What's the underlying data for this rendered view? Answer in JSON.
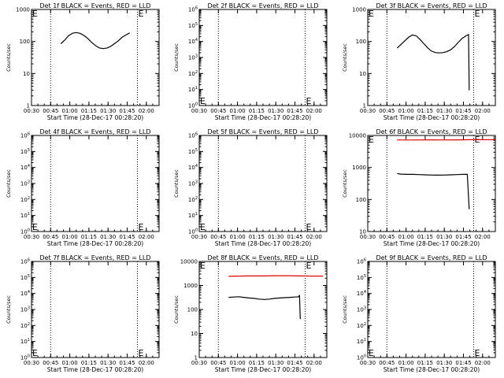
{
  "figure": {
    "x_tick_labels": [
      "00:30",
      "00:45",
      "01:00",
      "01:15",
      "01:30",
      "01:45",
      "02:00"
    ],
    "x_axis_title": "Start Time (28-Dec-17 00:28:20)",
    "y_axis_title": "Counts/sec",
    "e_marker": "E",
    "line_colors": {
      "events": "#000000",
      "lld": "#e00000"
    }
  },
  "chart_data": [
    {
      "type": "line",
      "title": "Det 1f BLACK = Events, RED = LLD",
      "xlabel": "Start Time (28-Dec-17 00:28:20)",
      "ylabel": "Counts/sec",
      "x_range_minutes": [
        30,
        130
      ],
      "ylim": [
        1,
        1000
      ],
      "y_scale": "log",
      "y_tick_labels": [
        "1",
        "10",
        "100",
        "1000"
      ],
      "dotted_lines_at_minutes": [
        45,
        113
      ],
      "e_markers": [
        {
          "x": 30,
          "y": 1000
        },
        {
          "x": 113,
          "y": 1000
        }
      ],
      "series": [
        {
          "color": "events",
          "points": [
            [
              53,
              85
            ],
            [
              56,
              110
            ],
            [
              59,
              150
            ],
            [
              62,
              180
            ],
            [
              65,
              190
            ],
            [
              68,
              180
            ],
            [
              71,
              155
            ],
            [
              74,
              125
            ],
            [
              77,
              95
            ],
            [
              80,
              75
            ],
            [
              83,
              63
            ],
            [
              86,
              60
            ],
            [
              89,
              62
            ],
            [
              92,
              70
            ],
            [
              95,
              85
            ],
            [
              98,
              105
            ],
            [
              101,
              135
            ],
            [
              104,
              160
            ],
            [
              107,
              185
            ]
          ]
        }
      ]
    },
    {
      "type": "line",
      "title": "Det 2f BLACK = Events, RED = LLD",
      "xlabel": "Start Time (28-Dec-17 00:28:20)",
      "ylabel": "Counts/sec",
      "x_range_minutes": [
        30,
        130
      ],
      "ylim": [
        1,
        1000000
      ],
      "y_scale": "log",
      "y_tick_labels": [
        "10^0",
        "10^1",
        "10^2",
        "10^3",
        "10^4",
        "10^5",
        "10^6"
      ],
      "dotted_lines_at_minutes": [
        45,
        113
      ],
      "e_markers": [
        {
          "x": 30,
          "y": 1
        },
        {
          "x": 113,
          "y": 1
        }
      ],
      "series": []
    },
    {
      "type": "line",
      "title": "Det 3f BLACK = Events, RED = LLD",
      "xlabel": "Start Time (28-Dec-17 00:28:20)",
      "ylabel": "Counts/sec",
      "x_range_minutes": [
        30,
        130
      ],
      "ylim": [
        1,
        1000
      ],
      "y_scale": "log",
      "y_tick_labels": [
        "1",
        "10",
        "100",
        "1000"
      ],
      "dotted_lines_at_minutes": [
        45,
        113
      ],
      "e_markers": [
        {
          "x": 30,
          "y": 1000
        },
        {
          "x": 113,
          "y": 1000
        }
      ],
      "series": [
        {
          "color": "events",
          "points": [
            [
              53,
              62
            ],
            [
              56,
              80
            ],
            [
              59,
              105
            ],
            [
              62,
              135
            ],
            [
              65,
              160
            ],
            [
              68,
              150
            ],
            [
              71,
              115
            ],
            [
              74,
              85
            ],
            [
              77,
              63
            ],
            [
              80,
              50
            ],
            [
              83,
              45
            ],
            [
              86,
              44
            ],
            [
              89,
              45
            ],
            [
              92,
              48
            ],
            [
              95,
              55
            ],
            [
              98,
              70
            ],
            [
              101,
              95
            ],
            [
              104,
              125
            ],
            [
              107,
              150
            ],
            [
              109,
              165
            ],
            [
              109.5,
              3
            ]
          ]
        }
      ]
    },
    {
      "type": "line",
      "title": "Det 4f BLACK = Events, RED = LLD",
      "xlabel": "Start Time (28-Dec-17 00:28:20)",
      "ylabel": "Counts/sec",
      "x_range_minutes": [
        30,
        130
      ],
      "ylim": [
        1,
        1000000
      ],
      "y_scale": "log",
      "y_tick_labels": [
        "10^0",
        "10^1",
        "10^2",
        "10^3",
        "10^4",
        "10^5",
        "10^6"
      ],
      "dotted_lines_at_minutes": [
        45,
        113
      ],
      "e_markers": [
        {
          "x": 30,
          "y": 1.3
        },
        {
          "x": 113,
          "y": 1.3
        }
      ],
      "series": []
    },
    {
      "type": "line",
      "title": "Det 5f BLACK = Events, RED = LLD",
      "xlabel": "Start Time (28-Dec-17 00:28:20)",
      "ylabel": "Counts/sec",
      "x_range_minutes": [
        30,
        130
      ],
      "ylim": [
        1,
        1000000
      ],
      "y_scale": "log",
      "y_tick_labels": [
        "10^0",
        "10^1",
        "10^2",
        "10^3",
        "10^4",
        "10^5",
        "10^6"
      ],
      "dotted_lines_at_minutes": [
        45,
        113
      ],
      "e_markers": [
        {
          "x": 30,
          "y": 1.3
        },
        {
          "x": 113,
          "y": 1.3
        }
      ],
      "series": []
    },
    {
      "type": "line",
      "title": "Det 6f BLACK = Events, RED = LLD",
      "xlabel": "Start Time (28-Dec-17 00:28:20)",
      "ylabel": "Counts/sec",
      "x_range_minutes": [
        30,
        130
      ],
      "ylim": [
        10,
        10000
      ],
      "y_scale": "log",
      "y_tick_labels": [
        "10",
        "100",
        "1000",
        "10000"
      ],
      "dotted_lines_at_minutes": [
        45,
        113
      ],
      "e_markers": [
        {
          "x": 30,
          "y": 10000
        },
        {
          "x": 113,
          "y": 10000
        }
      ],
      "series": [
        {
          "color": "lld",
          "points": [
            [
              53,
              7300
            ],
            [
              60,
              7200
            ],
            [
              70,
              7250
            ],
            [
              80,
              7300
            ],
            [
              90,
              7250
            ],
            [
              100,
              7300
            ],
            [
              110,
              7350
            ],
            [
              120,
              7350
            ],
            [
              130,
              7350
            ]
          ]
        },
        {
          "color": "events",
          "points": [
            [
              53,
              650
            ],
            [
              56,
              620
            ],
            [
              60,
              610
            ],
            [
              65,
              610
            ],
            [
              70,
              600
            ],
            [
              75,
              590
            ],
            [
              80,
              580
            ],
            [
              85,
              575
            ],
            [
              90,
              580
            ],
            [
              95,
              590
            ],
            [
              100,
              600
            ],
            [
              105,
              610
            ],
            [
              108,
              615
            ],
            [
              109.5,
              50
            ]
          ]
        }
      ]
    },
    {
      "type": "line",
      "title": "Det 7f BLACK = Events, RED = LLD",
      "xlabel": "Start Time (28-Dec-17 00:28:20)",
      "ylabel": "Counts/sec",
      "x_range_minutes": [
        30,
        130
      ],
      "ylim": [
        1,
        1000000
      ],
      "y_scale": "log",
      "y_tick_labels": [
        "10^0",
        "10^1",
        "10^2",
        "10^3",
        "10^4",
        "10^5",
        "10^6"
      ],
      "dotted_lines_at_minutes": [
        45,
        113
      ],
      "e_markers": [
        {
          "x": 30,
          "y": 1.3
        },
        {
          "x": 113,
          "y": 1.3
        }
      ],
      "series": []
    },
    {
      "type": "line",
      "title": "Det 8f BLACK = Events, RED = LLD",
      "xlabel": "Start Time (28-Dec-17 00:28:20)",
      "ylabel": "Counts/sec",
      "x_range_minutes": [
        30,
        130
      ],
      "ylim": [
        1,
        10000
      ],
      "y_scale": "log",
      "y_tick_labels": [
        "1",
        "10",
        "100",
        "1000",
        "10000"
      ],
      "dotted_lines_at_minutes": [
        45,
        113
      ],
      "e_markers": [
        {
          "x": 30,
          "y": 10000
        },
        {
          "x": 113,
          "y": 10000
        }
      ],
      "series": [
        {
          "color": "lld",
          "points": [
            [
              53,
              2400
            ],
            [
              60,
              2450
            ],
            [
              70,
              2500
            ],
            [
              80,
              2500
            ],
            [
              90,
              2550
            ],
            [
              100,
              2550
            ],
            [
              110,
              2500
            ],
            [
              120,
              2450
            ],
            [
              127,
              2450
            ]
          ]
        },
        {
          "color": "events",
          "points": [
            [
              53,
              320
            ],
            [
              57,
              330
            ],
            [
              61,
              340
            ],
            [
              65,
              320
            ],
            [
              69,
              300
            ],
            [
              73,
              290
            ],
            [
              77,
              270
            ],
            [
              81,
              260
            ],
            [
              85,
              270
            ],
            [
              89,
              290
            ],
            [
              93,
              300
            ],
            [
              97,
              310
            ],
            [
              101,
              320
            ],
            [
              105,
              330
            ],
            [
              108,
              340
            ],
            [
              108.6,
              400
            ],
            [
              109.2,
              40
            ]
          ]
        }
      ]
    },
    {
      "type": "line",
      "title": "Det 9f BLACK = Events, RED = LLD",
      "xlabel": "Start Time (28-Dec-17 00:28:20)",
      "ylabel": "Counts/sec",
      "x_range_minutes": [
        30,
        130
      ],
      "ylim": [
        1,
        1000000
      ],
      "y_scale": "log",
      "y_tick_labels": [
        "10^0",
        "10^1",
        "10^2",
        "10^3",
        "10^4",
        "10^5",
        "10^6"
      ],
      "dotted_lines_at_minutes": [
        45,
        113
      ],
      "e_markers": [
        {
          "x": 30,
          "y": 1.3
        },
        {
          "x": 113,
          "y": 1.3
        }
      ],
      "series": []
    }
  ]
}
